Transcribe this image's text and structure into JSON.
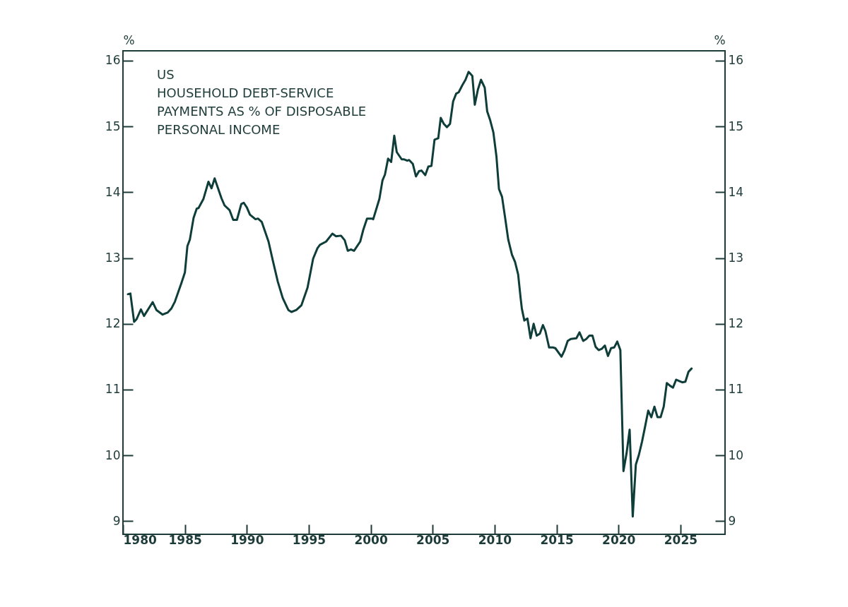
{
  "chart_data": {
    "type": "line",
    "title": "US",
    "subtitle": "HOUSEHOLD DEBT-SERVICE PAYMENTS AS % OF DISPOSABLE PERSONAL INCOME",
    "ylabel": "%",
    "y2label": "%",
    "x": [
      1980.4,
      1980.6,
      1980.9,
      1981.1,
      1981.45,
      1981.7,
      1982.4,
      1982.7,
      1983.2,
      1983.6,
      1983.9,
      1984.2,
      1984.7,
      1985.0,
      1985.2,
      1985.4,
      1985.7,
      1985.95,
      1986.1,
      1986.5,
      1986.9,
      1987.15,
      1987.4,
      1987.95,
      1988.2,
      1988.6,
      1988.9,
      1989.2,
      1989.55,
      1989.75,
      1990.0,
      1990.25,
      1990.7,
      1990.9,
      1991.2,
      1991.75,
      1992.1,
      1992.5,
      1992.9,
      1993.35,
      1993.6,
      1994.0,
      1994.4,
      1994.9,
      1995.35,
      1995.7,
      1995.9,
      1996.4,
      1996.9,
      1997.2,
      1997.6,
      1997.9,
      1998.15,
      1998.4,
      1998.65,
      1999.15,
      1999.4,
      1999.7,
      2000.1,
      2000.2,
      2000.7,
      2000.95,
      2001.15,
      2001.4,
      2001.65,
      2001.9,
      2002.1,
      2002.5,
      2002.7,
      2002.95,
      2003.1,
      2003.4,
      2003.65,
      2003.9,
      2004.1,
      2004.4,
      2004.65,
      2004.9,
      2005.15,
      2005.45,
      2005.65,
      2005.9,
      2006.15,
      2006.4,
      2006.65,
      2006.9,
      2007.1,
      2007.4,
      2007.65,
      2007.9,
      2008.2,
      2008.4,
      2008.65,
      2008.9,
      2009.2,
      2009.4,
      2009.65,
      2009.9,
      2010.15,
      2010.35,
      2010.6,
      2010.85,
      2011.1,
      2011.4,
      2011.65,
      2011.9,
      2012.1,
      2012.2,
      2012.4,
      2012.65,
      2012.9,
      2013.15,
      2013.4,
      2013.65,
      2013.9,
      2014.1,
      2014.4,
      2014.7,
      2014.9,
      2015.4,
      2015.65,
      2015.9,
      2016.15,
      2016.6,
      2016.85,
      2017.15,
      2017.4,
      2017.65,
      2017.9,
      2018.15,
      2018.4,
      2018.65,
      2018.9,
      2019.15,
      2019.4,
      2019.65,
      2019.9,
      2020.15,
      2020.4,
      2020.65,
      2020.9,
      2021.15,
      2021.4,
      2021.65,
      2021.9,
      2022.15,
      2022.4,
      2022.65,
      2022.9,
      2023.15,
      2023.4,
      2023.65,
      2023.9,
      2024.15,
      2024.4,
      2024.65,
      2024.9,
      2025.15,
      2025.4,
      2025.65,
      2025.9
    ],
    "series": [
      {
        "color": "#0f3d3a",
        "values": [
          12.45,
          12.46,
          12.03,
          12.07,
          12.22,
          12.12,
          12.33,
          12.21,
          12.14,
          12.17,
          12.23,
          12.34,
          12.61,
          12.78,
          13.18,
          13.28,
          13.61,
          13.75,
          13.76,
          13.9,
          14.16,
          14.06,
          14.21,
          13.91,
          13.8,
          13.73,
          13.58,
          13.58,
          13.82,
          13.84,
          13.77,
          13.66,
          13.59,
          13.6,
          13.55,
          13.25,
          12.96,
          12.64,
          12.39,
          12.21,
          12.18,
          12.21,
          12.28,
          12.55,
          12.99,
          13.15,
          13.2,
          13.25,
          13.37,
          13.33,
          13.34,
          13.27,
          13.11,
          13.13,
          13.11,
          13.25,
          13.43,
          13.6,
          13.6,
          13.59,
          13.9,
          14.18,
          14.27,
          14.51,
          14.46,
          14.86,
          14.61,
          14.5,
          14.5,
          14.48,
          14.49,
          14.43,
          14.24,
          14.32,
          14.33,
          14.26,
          14.39,
          14.4,
          14.8,
          14.82,
          15.13,
          15.04,
          14.99,
          15.04,
          15.38,
          15.5,
          15.52,
          15.63,
          15.71,
          15.83,
          15.77,
          15.33,
          15.56,
          15.71,
          15.59,
          15.23,
          15.09,
          14.91,
          14.54,
          14.05,
          13.93,
          13.61,
          13.28,
          13.05,
          12.94,
          12.75,
          12.39,
          12.23,
          12.05,
          12.08,
          11.78,
          12.0,
          11.82,
          11.85,
          11.98,
          11.89,
          11.64,
          11.64,
          11.63,
          11.5,
          11.6,
          11.74,
          11.77,
          11.78,
          11.87,
          11.74,
          11.77,
          11.82,
          11.82,
          11.65,
          11.6,
          11.62,
          11.67,
          11.51,
          11.63,
          11.64,
          11.73,
          11.6,
          9.76,
          10.03,
          10.39,
          9.07,
          9.86,
          10.01,
          10.21,
          10.44,
          10.68,
          10.58,
          10.74,
          10.58,
          10.58,
          10.74,
          11.1,
          11.06,
          11.03,
          11.15,
          11.13,
          11.11,
          11.12,
          11.27,
          11.32
        ]
      }
    ],
    "xlim": [
      1980,
      2028.6
    ],
    "xticks": [
      1980,
      1985,
      1990,
      1995,
      2000,
      2005,
      2010,
      2015,
      2020,
      2025
    ],
    "ylim": [
      8.8,
      16.15
    ],
    "yticks": [
      9,
      10,
      11,
      12,
      13,
      14,
      15,
      16
    ],
    "y2lim": [
      8.8,
      16.15
    ],
    "y2ticks": [
      9,
      10,
      11,
      12,
      13,
      14,
      15,
      16
    ]
  }
}
